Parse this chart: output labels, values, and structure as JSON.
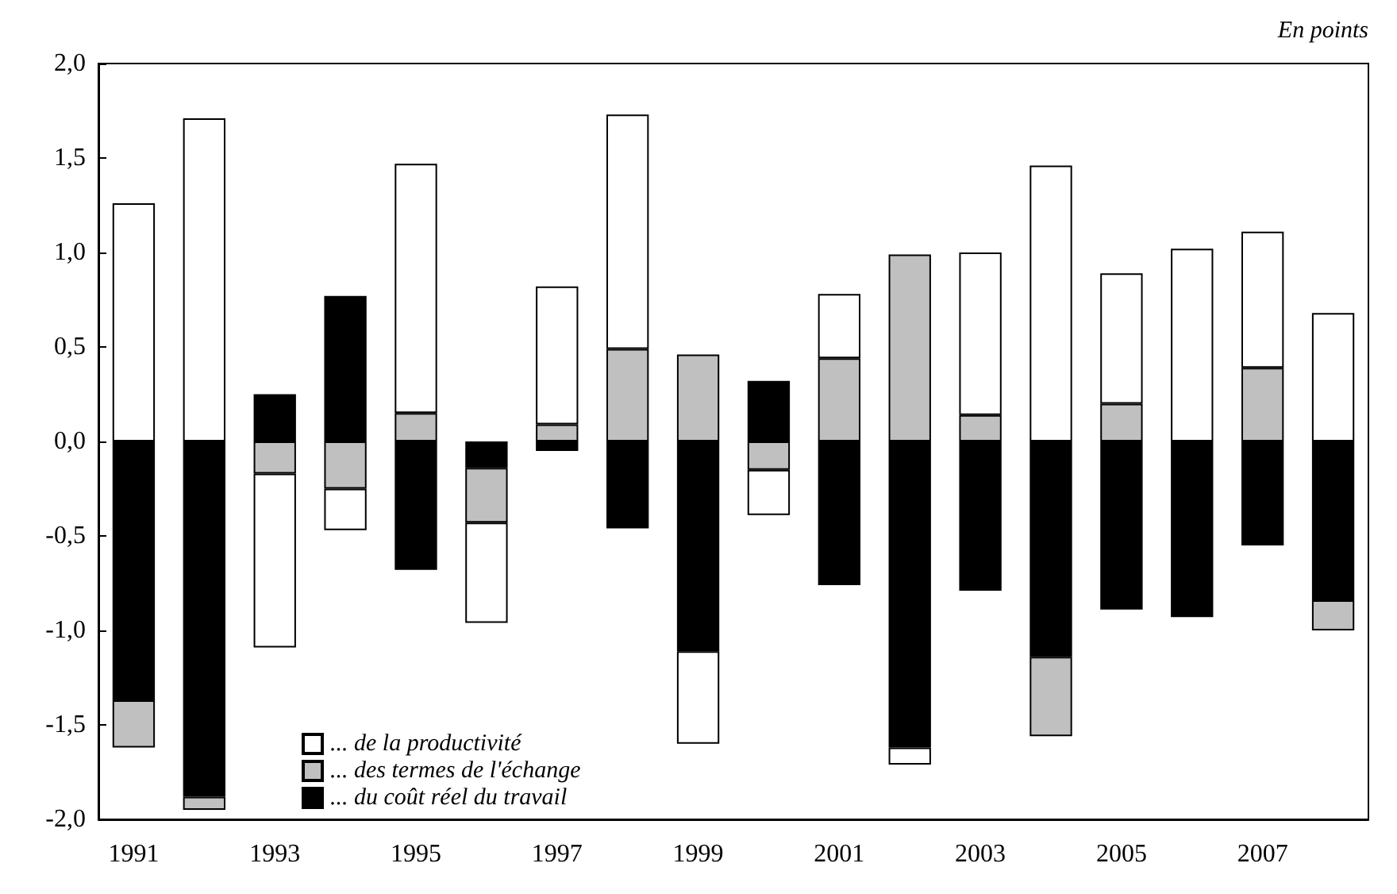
{
  "chart_data": {
    "type": "bar",
    "stacked": true,
    "annotations": [
      "En points"
    ],
    "categories": [
      "1991",
      null,
      "1993",
      null,
      "1995",
      null,
      "1997",
      null,
      "1999",
      null,
      "2001",
      null,
      "2003",
      null,
      "2005",
      null,
      "2007",
      null
    ],
    "series": [
      {
        "name": "... du coût réel du travail",
        "color": "#000000",
        "values": [
          -1.37,
          -1.88,
          0.25,
          0.77,
          -0.68,
          -0.14,
          -0.05,
          -0.46,
          -1.11,
          0.32,
          -0.76,
          -1.62,
          -0.79,
          -1.14,
          -0.89,
          -0.93,
          -0.55,
          -0.84
        ]
      },
      {
        "name": "... des termes de l'échange",
        "color": "#c0c0c0",
        "values": [
          -0.25,
          -0.07,
          -0.17,
          -0.25,
          0.15,
          -0.29,
          0.09,
          0.49,
          0.46,
          -0.15,
          0.44,
          0.99,
          0.14,
          -0.42,
          0.2,
          null,
          0.39,
          -0.16
        ]
      },
      {
        "name": "... de la productivité",
        "color": "#ffffff",
        "values": [
          1.26,
          1.71,
          -0.92,
          -0.22,
          1.32,
          -0.53,
          0.73,
          1.24,
          -0.49,
          -0.24,
          0.34,
          -0.09,
          0.86,
          1.46,
          0.69,
          1.02,
          0.72,
          0.68
        ]
      }
    ],
    "ylim": [
      -2,
      2
    ],
    "yticks": [
      {
        "value": -2,
        "label": "-2,0"
      },
      {
        "value": -1.5,
        "label": "-1,5"
      },
      {
        "value": -1,
        "label": "-1,0"
      },
      {
        "value": -0.5,
        "label": "-0,5"
      },
      {
        "value": 0,
        "label": "0,0"
      },
      {
        "value": 0.5,
        "label": "0,5"
      },
      {
        "value": 1,
        "label": "1,0"
      },
      {
        "value": 1.5,
        "label": "1,5"
      },
      {
        "value": 2,
        "label": "2,0"
      }
    ],
    "grid": false,
    "legend": "bottom left"
  }
}
